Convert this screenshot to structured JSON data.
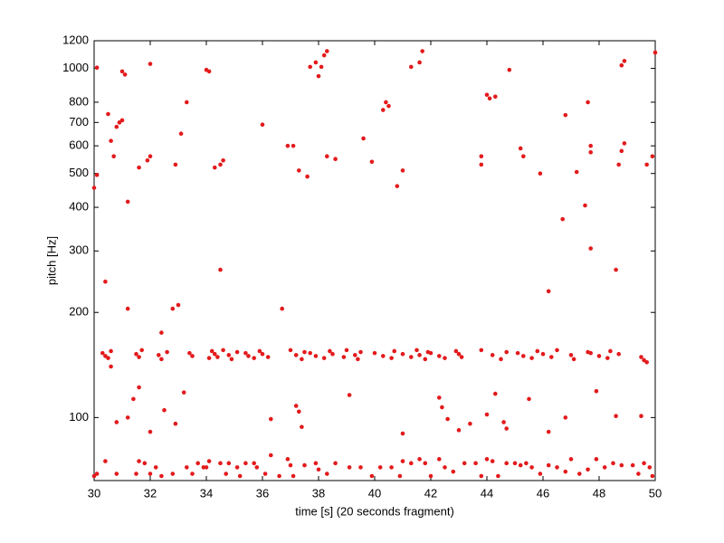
{
  "chart_data": {
    "type": "scatter",
    "x_label": "time [s] (20 seconds fragment)",
    "y_label": "pitch [Hz]",
    "xlim": [
      30,
      50
    ],
    "ylim": [
      66,
      1200
    ],
    "xticks": [
      30,
      32,
      34,
      36,
      38,
      40,
      42,
      44,
      46,
      48,
      50
    ],
    "yticks": [
      100,
      200,
      300,
      400,
      500,
      600,
      700,
      800,
      1000,
      1200
    ],
    "y_log": true,
    "grid": false,
    "series": [
      {
        "color": "#e31a1c",
        "x": [
          30.3,
          30.4,
          30.5,
          30.6,
          31.5,
          31.6,
          31.7,
          32.3,
          32.4,
          32.6,
          33.4,
          33.5,
          34.1,
          34.2,
          34.3,
          34.4,
          34.6,
          34.8,
          34.9,
          35.1,
          35.4,
          35.5,
          35.7,
          35.9,
          36.0,
          36.2,
          37.0,
          37.2,
          37.4,
          37.5,
          37.7,
          37.9,
          38.2,
          38.4,
          38.5,
          38.9,
          39.0,
          39.3,
          39.4,
          39.5,
          40.0,
          40.3,
          40.6,
          40.7,
          41.0,
          41.3,
          41.5,
          41.6,
          41.8,
          41.9,
          42.0,
          42.3,
          42.5,
          42.9,
          43.0,
          43.1,
          43.8,
          44.2,
          44.5,
          44.7,
          45.1,
          45.3,
          45.6,
          45.8,
          46.0,
          46.3,
          46.5,
          47.0,
          47.1,
          47.6,
          47.7,
          48.0,
          48.3,
          48.4,
          48.7,
          49.5,
          49.6,
          49.7,
          30.0,
          30.1,
          30.4,
          30.8,
          31.5,
          31.6,
          31.8,
          32.0,
          32.2,
          32.4,
          32.8,
          33.3,
          33.5,
          33.7,
          33.9,
          34.0,
          34.1,
          34.5,
          34.7,
          34.8,
          35.1,
          35.2,
          35.4,
          35.7,
          35.8,
          36.1,
          36.3,
          36.6,
          36.9,
          37.0,
          37.1,
          37.5,
          37.9,
          38.0,
          38.3,
          38.6,
          39.1,
          39.5,
          39.9,
          40.2,
          40.6,
          40.9,
          41.0,
          41.3,
          41.6,
          41.8,
          42.0,
          42.3,
          42.5,
          42.8,
          43.2,
          43.6,
          43.8,
          44.0,
          44.2,
          44.4,
          44.7,
          45.0,
          45.2,
          45.4,
          45.6,
          45.9,
          46.2,
          46.5,
          46.8,
          47.0,
          47.3,
          47.6,
          47.9,
          48.2,
          48.5,
          48.8,
          49.2,
          49.4,
          49.6,
          49.8,
          49.9,
          31.2,
          30.8,
          31.4,
          31.6,
          32.0,
          32.5,
          32.9,
          33.2,
          36.3,
          37.2,
          37.3,
          37.4,
          39.1,
          41.0,
          42.3,
          42.4,
          42.6,
          43.0,
          43.4,
          44.0,
          44.3,
          44.6,
          44.7,
          45.5,
          46.2,
          46.8,
          47.9,
          48.6,
          49.5,
          30.6,
          30.1,
          30.0,
          30.1,
          30.4,
          30.5,
          30.6,
          30.7,
          30.8,
          30.9,
          31.0,
          31.0,
          31.1,
          31.2,
          31.2,
          31.6,
          31.9,
          32.0,
          32.0,
          32.4,
          32.8,
          33.0,
          32.9,
          33.1,
          33.3,
          34.0,
          34.1,
          34.3,
          34.5,
          34.6,
          34.5,
          36.0,
          36.7,
          36.9,
          37.1,
          37.3,
          37.6,
          37.7,
          37.9,
          38.0,
          38.1,
          38.2,
          38.3,
          38.3,
          38.6,
          39.6,
          39.9,
          40.3,
          40.4,
          40.5,
          40.8,
          41.0,
          41.3,
          41.6,
          41.7,
          43.8,
          43.8,
          44.0,
          44.1,
          44.3,
          44.8,
          45.2,
          45.3,
          45.9,
          46.2,
          46.7,
          46.8,
          47.2,
          47.5,
          47.6,
          47.7,
          47.7,
          47.7,
          48.6,
          48.7,
          48.8,
          48.9,
          48.8,
          48.9,
          49.7,
          49.9,
          50.0
        ],
        "values": [
          153,
          150,
          148,
          155,
          152,
          149,
          156,
          151,
          147,
          154,
          153,
          150,
          148,
          155,
          152,
          149,
          156,
          151,
          147,
          154,
          153,
          150,
          148,
          155,
          152,
          149,
          156,
          151,
          147,
          154,
          153,
          150,
          148,
          155,
          152,
          149,
          156,
          151,
          147,
          154,
          153,
          150,
          148,
          155,
          152,
          149,
          156,
          151,
          147,
          154,
          153,
          150,
          148,
          155,
          152,
          149,
          156,
          151,
          147,
          154,
          153,
          150,
          148,
          155,
          152,
          149,
          156,
          151,
          147,
          154,
          153,
          150,
          148,
          155,
          152,
          149,
          146,
          144,
          68,
          69,
          75,
          69,
          69,
          75,
          74,
          69,
          72,
          68,
          69,
          72,
          69,
          74,
          72,
          72,
          75,
          74,
          69,
          74,
          72,
          68,
          74,
          74,
          72,
          69,
          78,
          68,
          76,
          73,
          68,
          73,
          74,
          71,
          69,
          74,
          72,
          72,
          68,
          72,
          72,
          68,
          75,
          74,
          76,
          74,
          68,
          76,
          72,
          70,
          74,
          74,
          68,
          76,
          75,
          68,
          74,
          74,
          73,
          74,
          72,
          69,
          73,
          72,
          70,
          76,
          69,
          71,
          76,
          72,
          74,
          73,
          73,
          69,
          74,
          72,
          68,
          100,
          97,
          113,
          122,
          91,
          105,
          96,
          118,
          99,
          108,
          104,
          94,
          116,
          90,
          114,
          107,
          99,
          92,
          96,
          102,
          117,
          97,
          93,
          113,
          91,
          100,
          119,
          101,
          101,
          140,
          1005,
          455,
          495,
          245,
          740,
          620,
          560,
          680,
          700,
          710,
          980,
          960,
          415,
          205,
          520,
          545,
          560,
          1030,
          175,
          205,
          210,
          530,
          650,
          800,
          990,
          980,
          520,
          530,
          545,
          265,
          690,
          205,
          600,
          600,
          510,
          490,
          1010,
          1040,
          950,
          1010,
          1090,
          1120,
          560,
          550,
          630,
          540,
          760,
          800,
          780,
          460,
          510,
          1010,
          1040,
          1120,
          530,
          560,
          840,
          820,
          830,
          990,
          590,
          560,
          500,
          230,
          370,
          735,
          505,
          405,
          800,
          600,
          305,
          575,
          265,
          530,
          1020,
          1050,
          580,
          610,
          530,
          560,
          1110
        ]
      }
    ]
  }
}
